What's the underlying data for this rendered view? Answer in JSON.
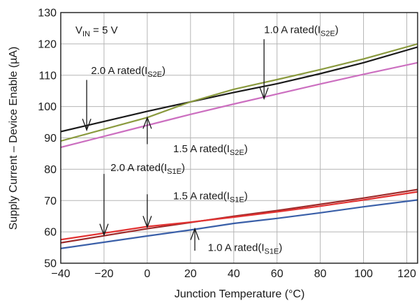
{
  "chart_data": {
    "type": "line",
    "xlabel": "Junction Temperature (°C)",
    "ylabel": "Supply Current – Device Enable (µA)",
    "xlim": [
      -40,
      125
    ],
    "ylim": [
      50,
      130
    ],
    "xticks": [
      "−40",
      "−20",
      "0",
      "20",
      "40",
      "60",
      "80",
      "100",
      "120"
    ],
    "xtick_values": [
      -40,
      -20,
      0,
      20,
      40,
      60,
      80,
      100,
      120
    ],
    "yticks": [
      "50",
      "60",
      "70",
      "80",
      "90",
      "100",
      "110",
      "120",
      "130"
    ],
    "ytick_values": [
      50,
      60,
      70,
      80,
      90,
      100,
      110,
      120,
      130
    ],
    "grid": true,
    "condition": {
      "main": "V",
      "sub": "IN",
      "rest": " = 5 V"
    },
    "series": [
      {
        "key": "i2e_2a",
        "color": "#1a1a1a",
        "x": [
          -40,
          0,
          20,
          40,
          60,
          80,
          100,
          125
        ],
        "y": [
          92,
          98.5,
          101.5,
          104.5,
          107.3,
          110.5,
          114,
          119
        ]
      },
      {
        "key": "i2e_1a",
        "color": "#8a9a3e",
        "x": [
          -40,
          0,
          20,
          40,
          60,
          80,
          100,
          125
        ],
        "y": [
          89,
          96.5,
          101.5,
          105.5,
          108.6,
          111.8,
          115.2,
          120
        ]
      },
      {
        "key": "i2e_15a",
        "color": "#cc6fc0",
        "x": [
          -40,
          0,
          20,
          40,
          60,
          80,
          100,
          125
        ],
        "y": [
          87,
          94,
          97.5,
          100.8,
          104,
          107.2,
          110.3,
          114
        ]
      },
      {
        "key": "i1e_15a",
        "color": "#9e2b2b",
        "x": [
          -40,
          0,
          20,
          40,
          60,
          80,
          100,
          125
        ],
        "y": [
          56.5,
          61,
          63,
          65,
          66.8,
          68.8,
          70.8,
          73.5
        ]
      },
      {
        "key": "i1e_2a",
        "color": "#e23232",
        "x": [
          -40,
          0,
          20,
          40,
          60,
          80,
          100,
          125
        ],
        "y": [
          57.5,
          61.7,
          63.1,
          64.7,
          66.4,
          68.2,
          70.2,
          72.8
        ]
      },
      {
        "key": "i1e_1a",
        "color": "#3a5fa8",
        "x": [
          -40,
          0,
          20,
          40,
          60,
          80,
          100,
          125
        ],
        "y": [
          54.7,
          58.7,
          60.6,
          62.7,
          64.3,
          66.1,
          68,
          70.2
        ]
      }
    ],
    "annotations": [
      {
        "key": "a_2a_s2e",
        "label": "2.0 A rated",
        "sub": "S2E",
        "text_x": -26,
        "text_y": 111.5,
        "anchor": "start",
        "arrow_x": -28,
        "arrow_from_y": 108.5,
        "arrow_to_y": 92.5
      },
      {
        "key": "a_1a_s2e",
        "label": "1.0 A rated",
        "sub": "S2E",
        "text_x": 54,
        "text_y": 124.5,
        "anchor": "start",
        "arrow_x": 54,
        "arrow_from_y": 121.5,
        "arrow_to_y": 102.5
      },
      {
        "key": "a_15a_s2e",
        "label": "1.5 A rated",
        "sub": "S2E",
        "text_x": 12,
        "text_y": 86.5,
        "anchor": "start",
        "arrow_x": 0,
        "arrow_from_y": 88,
        "arrow_to_y": 96.5
      },
      {
        "key": "a_2a_s1e",
        "label": "2.0 A rated",
        "sub": "S1E",
        "text_x": -17,
        "text_y": 80.5,
        "anchor": "start",
        "arrow_x": -20,
        "arrow_from_y": 78.5,
        "arrow_to_y": 59
      },
      {
        "key": "a_15a_s1e",
        "label": "1.5 A rated",
        "sub": "S1E",
        "text_x": 12,
        "text_y": 71.5,
        "anchor": "start",
        "arrow_x": 0,
        "arrow_from_y": 72,
        "arrow_to_y": 61.5
      },
      {
        "key": "a_1a_s1e",
        "label": "1.0 A rated",
        "sub": "S1E",
        "text_x": 28,
        "text_y": 55,
        "anchor": "start",
        "arrow_x": 22,
        "arrow_from_y": 54,
        "arrow_to_y": 61
      }
    ]
  }
}
